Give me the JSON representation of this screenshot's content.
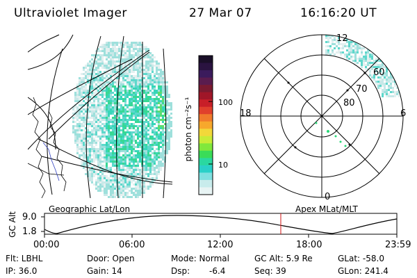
{
  "header": {
    "title": "Ultraviolet Imager",
    "date": "27 Mar 07",
    "time": "16:16:20 UT"
  },
  "colorbar": {
    "unit_label": "photon cm⁻²s⁻¹",
    "ticks": [
      "100",
      "10"
    ],
    "colors": [
      "#1a0f28",
      "#2a1340",
      "#3b1b5c",
      "#5a1c4e",
      "#7a1a30",
      "#a01628",
      "#c81f28",
      "#e0402c",
      "#f07a2c",
      "#f7a82c",
      "#f2d83a",
      "#c8ec38",
      "#80e83c",
      "#3adc58",
      "#2ad8a0",
      "#2ad0c8",
      "#80e0e0",
      "#c8ecec",
      "#e8f4f4"
    ]
  },
  "left_map": {
    "label": "Geographic Lat/Lon",
    "palette": [
      "#e4f0f0",
      "#c8e8e8",
      "#9ee0dc",
      "#5ed8cc",
      "#36d6b8",
      "#38d894",
      "#5cdc70"
    ]
  },
  "polar_map": {
    "label": "Apex MLat/MLT",
    "lat_labels": [
      "80",
      "70",
      "60"
    ],
    "mlt_labels": [
      "12",
      "18",
      "6",
      "0"
    ]
  },
  "strip": {
    "axis_label": "GC Alt",
    "y_ticks": [
      "9.0",
      "1.8"
    ],
    "x_ticks": [
      "00:00",
      "06:00",
      "12:00",
      "18:00",
      "23:59"
    ],
    "marker_color": "#d01010"
  },
  "info": {
    "row1": [
      "Flt: LBHL",
      "Door: Open",
      "Mode: Normal",
      "GC Alt: 5.9 Re",
      "GLat: -58.0"
    ],
    "row2": [
      "IP: 36.0",
      "Gain: 14",
      "Dsp:",
      "-6.4",
      "Seq: 39",
      "GLon: 241.4"
    ]
  }
}
